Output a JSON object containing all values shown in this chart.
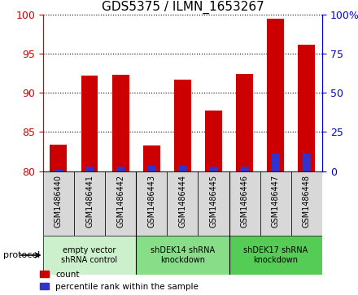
{
  "title": "GDS5375 / ILMN_1653267",
  "samples": [
    "GSM1486440",
    "GSM1486441",
    "GSM1486442",
    "GSM1486443",
    "GSM1486444",
    "GSM1486445",
    "GSM1486446",
    "GSM1486447",
    "GSM1486448"
  ],
  "red_values": [
    83.4,
    92.2,
    92.3,
    83.3,
    91.7,
    87.8,
    92.4,
    99.5,
    96.2
  ],
  "blue_values": [
    1.0,
    3.0,
    3.0,
    3.5,
    3.5,
    3.0,
    3.0,
    11.0,
    11.0
  ],
  "ylim_left": [
    80,
    100
  ],
  "ylim_right": [
    0,
    100
  ],
  "yticks_left": [
    80,
    85,
    90,
    95,
    100
  ],
  "yticks_right": [
    0,
    25,
    50,
    75,
    100
  ],
  "ytick_labels_right": [
    "0",
    "25",
    "50",
    "75",
    "100%"
  ],
  "left_axis_color": "#cc0000",
  "right_axis_color": "#0000cc",
  "bar_width": 0.55,
  "red_color": "#cc0000",
  "blue_color": "#3333cc",
  "groups": [
    {
      "label": "empty vector\nshRNA control",
      "start": 0,
      "end": 2,
      "color": "#ccf0cc"
    },
    {
      "label": "shDEK14 shRNA\nknockdown",
      "start": 3,
      "end": 5,
      "color": "#88dd88"
    },
    {
      "label": "shDEK17 shRNA\nknockdown",
      "start": 6,
      "end": 8,
      "color": "#55cc55"
    }
  ],
  "plot_bg_color": "#ffffff",
  "cell_bg_color": "#d8d8d8",
  "title_fontsize": 11,
  "tick_fontsize": 9,
  "label_fontsize": 8
}
